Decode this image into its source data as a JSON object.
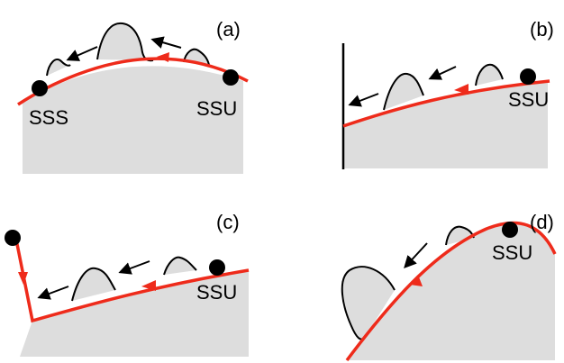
{
  "figure": {
    "colors": {
      "background": "#ffffff",
      "terrain_fill": "#dddddd",
      "outline": "#000000",
      "trajectory": "#ee2b1b",
      "point": "#000000"
    },
    "icons": [
      "arrow-icon",
      "point-icon"
    ],
    "panels": [
      {
        "id": "a",
        "label": "(a)",
        "points": [
          "SSS",
          "SSU"
        ]
      },
      {
        "id": "b",
        "label": "(b)",
        "points": [
          "SSU"
        ]
      },
      {
        "id": "c",
        "label": "(c)",
        "points": [
          "SSU"
        ]
      },
      {
        "id": "d",
        "label": "(d)",
        "points": [
          "SSU"
        ]
      }
    ]
  }
}
